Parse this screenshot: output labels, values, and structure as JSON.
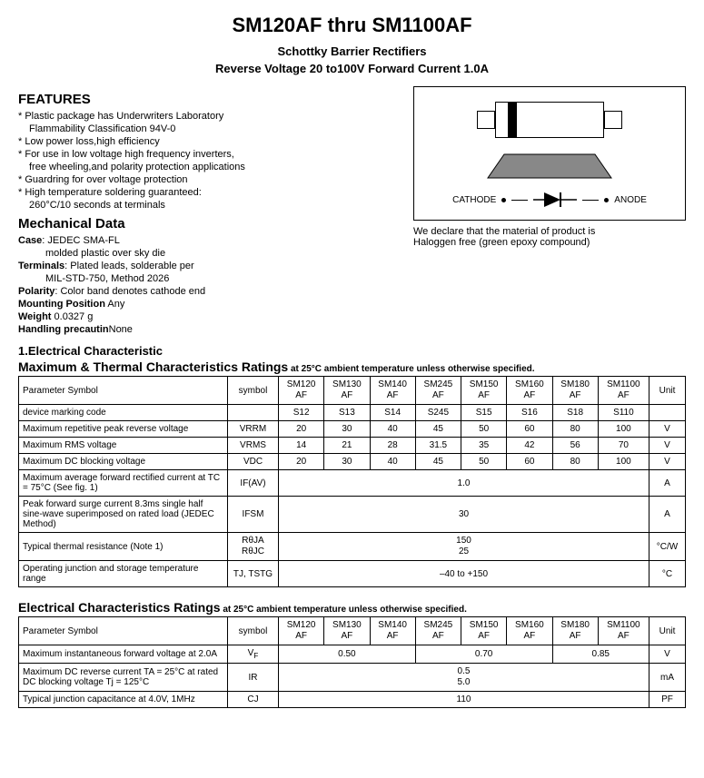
{
  "header": {
    "title": "SM120AF  thru SM1100AF",
    "subtitle1": "Schottky Barrier Rectifiers",
    "subtitle2": "Reverse Voltage 20 to100V  Forward Current 1.0A"
  },
  "features": {
    "heading": "FEATURES",
    "items": [
      {
        "text": "Plastic package has Underwriters Laboratory",
        "sub": "Flammability Classification 94V-0"
      },
      {
        "text": "Low power loss,high efficiency"
      },
      {
        "text": "For use in low voltage high frequency inverters,",
        "sub": "free wheeling,and polarity protection applications"
      },
      {
        "text": "Guardring for over voltage protection"
      },
      {
        "text": "High temperature soldering guaranteed:",
        "sub": "260°C/10 seconds at terminals"
      }
    ]
  },
  "mechanical": {
    "heading": "Mechanical Data",
    "rows": [
      {
        "label": "Case",
        "value": ": JEDEC  SMA-FL",
        "sub": "molded plastic over sky die"
      },
      {
        "label": "Terminals",
        "value": ": Plated  leads, solderable per",
        "sub": "MIL-STD-750, Method 2026"
      },
      {
        "label": "Polarity",
        "value": ": Color band denotes cathode end"
      },
      {
        "label": "Mounting Position",
        "value": " Any"
      },
      {
        "label": "Weight",
        "value": " 0.0327 g"
      },
      {
        "label": "Handling precautin",
        "value": "None"
      }
    ]
  },
  "diagram": {
    "cathode": "CATHODE",
    "anode": "ANODE",
    "trap_fill": "#888888"
  },
  "declare": {
    "line1": "We declare that the material of product is",
    "line2": "Haloggen free (green epoxy compound)"
  },
  "section1": {
    "numbered": "1.Electrical Characteristic",
    "heading": "Maximum & Thermal Characteristics Ratings",
    "cond": " at 25°C ambient temperature unless otherwise specified."
  },
  "table1": {
    "cols": [
      "Parameter Symbol",
      "symbol",
      "SM120 AF",
      "SM130 AF",
      "SM140 AF",
      "SM245 AF",
      "SM150 AF",
      "SM160 AF",
      "SM180 AF",
      "SM1100 AF",
      "Unit"
    ],
    "rows": [
      {
        "param": "device marking code",
        "sym": "",
        "vals": [
          "S12",
          "S13",
          "S14",
          "S245",
          "S15",
          "S16",
          "S18",
          "S110"
        ],
        "unit": ""
      },
      {
        "param": "Maximum repetitive peak reverse voltage",
        "sym": "VRRM",
        "vals": [
          "20",
          "30",
          "40",
          "45",
          "50",
          "60",
          "80",
          "100"
        ],
        "unit": "V"
      },
      {
        "param": "Maximum RMS voltage",
        "sym": "VRMS",
        "vals": [
          "14",
          "21",
          "28",
          "31.5",
          "35",
          "42",
          "56",
          "70"
        ],
        "unit": "V"
      },
      {
        "param": "Maximum DC blocking voltage",
        "sym": "VDC",
        "vals": [
          "20",
          "30",
          "40",
          "45",
          "50",
          "60",
          "80",
          "100"
        ],
        "unit": "V"
      },
      {
        "param": "Maximum average forward rectified current  at TC = 75°C   (See fig. 1)",
        "sym": "IF(AV)",
        "span": "1.0",
        "unit": "A"
      },
      {
        "param": "Peak forward surge current 8.3ms single half sine-wave superimposed on rated load (JEDEC Method)",
        "sym": "IFSM",
        "span": "30",
        "unit": "A"
      },
      {
        "param": "Typical thermal resistance (Note 1)",
        "sym2": [
          "RθJA",
          "RθJC"
        ],
        "span2": [
          "150",
          "25"
        ],
        "unit": "°C/W"
      },
      {
        "param": "Operating junction and storage temperature range",
        "sym": "TJ, TSTG",
        "span": "–40 to +150",
        "unit": "°C"
      }
    ]
  },
  "section2": {
    "heading": "Electrical Characteristics Ratings",
    "cond": " at 25°C ambient temperature unless otherwise specified."
  },
  "table2": {
    "cols": [
      "Parameter Symbol",
      "symbol",
      "SM120 AF",
      "SM130 AF",
      "SM140 AF",
      "SM245 AF",
      "SM150 AF",
      "SM160 AF",
      "SM180 AF",
      "SM1100 AF",
      "Unit"
    ],
    "rows": [
      {
        "param": "Maximum instantaneous forward voltage at 2.0A",
        "sym": "VF",
        "vf": [
          "0.50",
          "0.70",
          "0.85"
        ],
        "unit": "V"
      },
      {
        "param": "Maximum DC reverse current TA = 25°C at rated DC blocking voltage Tj = 125°C",
        "sym": "IR",
        "span2": [
          "0.5",
          "5.0"
        ],
        "unit": "mA"
      },
      {
        "param": "Typical junction capacitance at 4.0V, 1MHz",
        "sym": "CJ",
        "span": "110",
        "unit": "PF"
      }
    ]
  }
}
